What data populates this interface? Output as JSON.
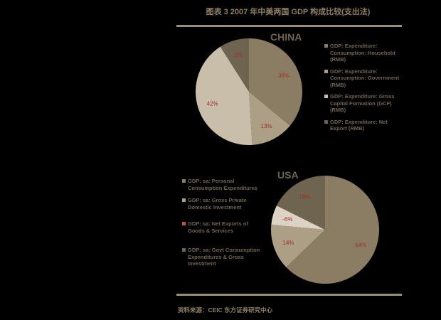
{
  "header": {
    "title": "图表 3 2007 年中美两国 GDP 构成比较(支出法)"
  },
  "source": "资料来源：CEIC 东方证券研究中心",
  "chart_data": [
    {
      "type": "pie",
      "title": "CHINA",
      "legend_position": "right",
      "slices": [
        {
          "label": "GDP: Expenditure: Consumption: Household (RMB)",
          "value": 36,
          "data_label": "36%",
          "color": "#8b7d64"
        },
        {
          "label": "GDP: Expenditure: Consumption: Government (RMB)",
          "value": 13,
          "data_label": "13%",
          "color": "#ad9f86"
        },
        {
          "label": "GDP: Expenditure: Gross Capital Formation (GCF) (RMB)",
          "value": 42,
          "data_label": "42%",
          "color": "#c9bea9"
        },
        {
          "label": "GDP: Expenditure: Net Export (RMB)",
          "value": 9,
          "data_label": "9%",
          "color": "#6e6450"
        }
      ]
    },
    {
      "type": "pie",
      "title": "USA",
      "legend_position": "left",
      "slices": [
        {
          "label": "GDP: sa: Personal Consumption Expenditures",
          "value": 64,
          "data_label": "64%",
          "color": "#8b7d64"
        },
        {
          "label": "GDP: sa: Gross Private Domestic Investment",
          "value": 14,
          "data_label": "14%",
          "color": "#ad9f86"
        },
        {
          "label": "GDP: sa: Net Exports of Goods & Services",
          "value": -6,
          "data_label": "-6%",
          "color": "#ddd3c4"
        },
        {
          "label": "GDP: sa: Govt Consumption Expenditures & Gross Investment",
          "value": 18,
          "data_label": "18%",
          "color": "#6e6450"
        }
      ]
    }
  ],
  "colors": {
    "rule": "#9a8c73",
    "text": "#6f6452",
    "data_label": "#a0302a",
    "background": "#000000"
  }
}
